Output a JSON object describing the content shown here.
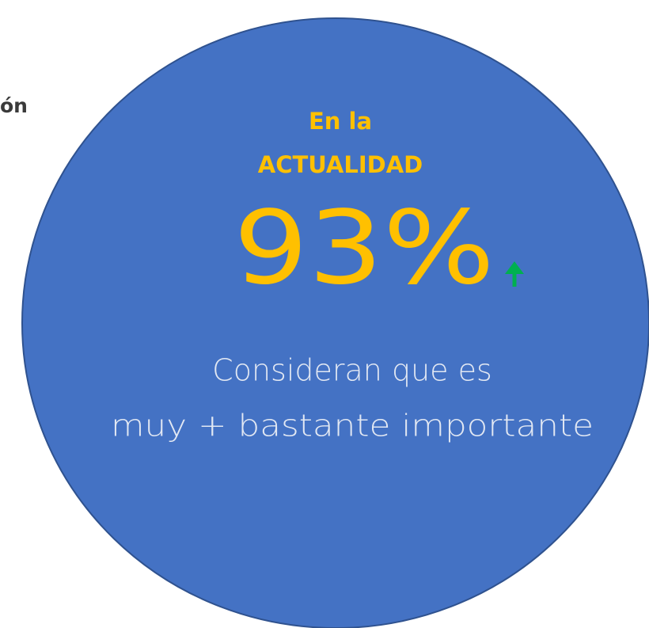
{
  "side_text": "ón",
  "circle": {
    "heading_line1": "En la",
    "heading_line2": "ACTUALIDAD",
    "stat": "93%",
    "caption_line1": "Consideran que es",
    "caption_line2": "muy + bastante importante"
  }
}
